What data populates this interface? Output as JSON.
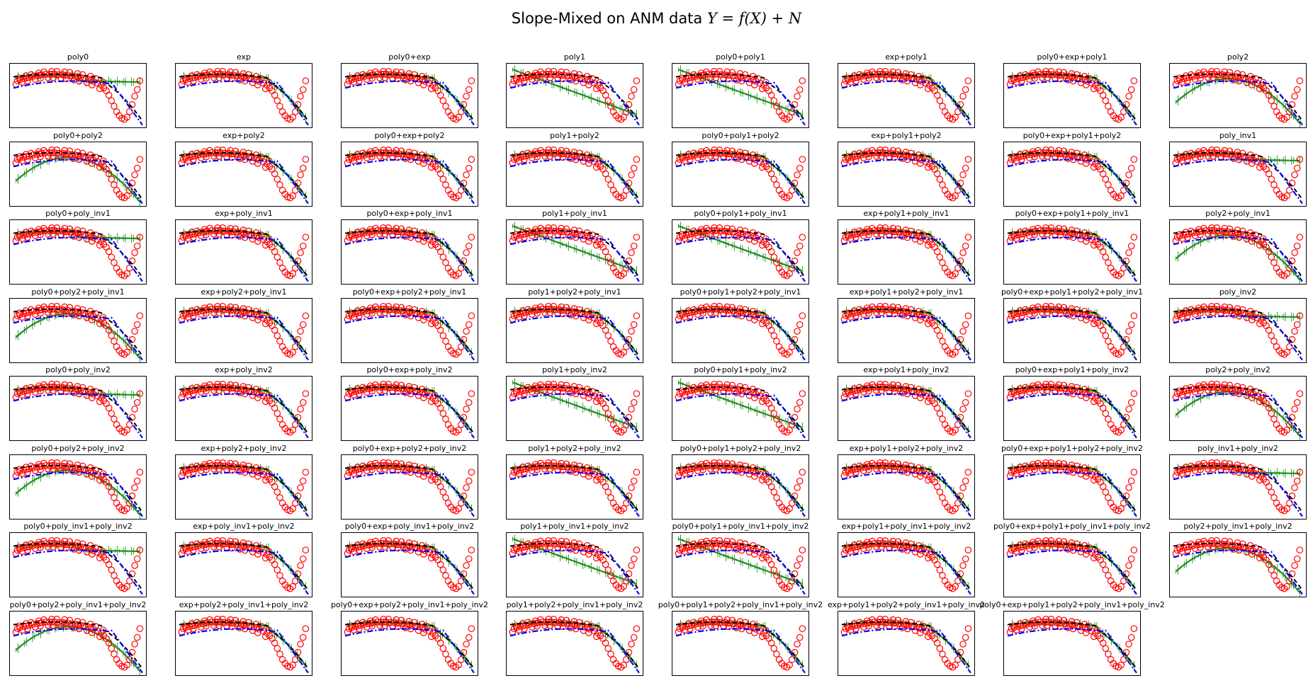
{
  "figure": {
    "title_text": "Slope-Mixed on ANM data ",
    "title_math": "Y = f(X) + N"
  },
  "chart_data": {
    "type": "scatter",
    "grid": false,
    "axes_ticks": "hidden",
    "marker_style": {
      "observations": {
        "marker": "open-circle",
        "color": "#ff0000"
      },
      "true_function": {
        "line": "dash",
        "color": "#000000"
      },
      "fit": {
        "line": "dash-dot",
        "color": "#0000ff"
      },
      "samples": {
        "marker": "plus-line",
        "color": "#008000"
      }
    },
    "observations": {
      "x": [
        0.03,
        0.05,
        0.08,
        0.1,
        0.12,
        0.15,
        0.18,
        0.2,
        0.22,
        0.25,
        0.28,
        0.3,
        0.32,
        0.35,
        0.38,
        0.4,
        0.42,
        0.45,
        0.48,
        0.5,
        0.52,
        0.55,
        0.58,
        0.6,
        0.62,
        0.65,
        0.68,
        0.7,
        0.72,
        0.74,
        0.76,
        0.78,
        0.8,
        0.82,
        0.84,
        0.86,
        0.88,
        0.9,
        0.92,
        0.94,
        0.96,
        0.98
      ],
      "y": [
        0.78,
        0.8,
        0.82,
        0.83,
        0.84,
        0.86,
        0.87,
        0.88,
        0.89,
        0.9,
        0.9,
        0.9,
        0.9,
        0.89,
        0.89,
        0.88,
        0.88,
        0.87,
        0.86,
        0.85,
        0.84,
        0.83,
        0.81,
        0.79,
        0.77,
        0.74,
        0.7,
        0.65,
        0.6,
        0.52,
        0.42,
        0.32,
        0.22,
        0.15,
        0.1,
        0.08,
        0.12,
        0.22,
        0.35,
        0.5,
        0.62,
        0.78
      ]
    },
    "panels": [
      {
        "label": "poly0",
        "fit": "flat"
      },
      {
        "label": "exp",
        "fit": "good"
      },
      {
        "label": "poly0+exp",
        "fit": "good"
      },
      {
        "label": "poly1",
        "fit": "linear"
      },
      {
        "label": "poly0+poly1",
        "fit": "linear"
      },
      {
        "label": "exp+poly1",
        "fit": "good"
      },
      {
        "label": "poly0+exp+poly1",
        "fit": "good"
      },
      {
        "label": "poly2",
        "fit": "quad"
      },
      {
        "label": "poly0+poly2",
        "fit": "quad"
      },
      {
        "label": "exp+poly2",
        "fit": "good"
      },
      {
        "label": "poly0+exp+poly2",
        "fit": "good"
      },
      {
        "label": "poly1+poly2",
        "fit": "good"
      },
      {
        "label": "poly0+poly1+poly2",
        "fit": "good"
      },
      {
        "label": "exp+poly1+poly2",
        "fit": "good"
      },
      {
        "label": "poly0+exp+poly1+poly2",
        "fit": "good"
      },
      {
        "label": "poly_inv1",
        "fit": "flat"
      },
      {
        "label": "poly0+poly_inv1",
        "fit": "flat"
      },
      {
        "label": "exp+poly_inv1",
        "fit": "good"
      },
      {
        "label": "poly0+exp+poly_inv1",
        "fit": "good"
      },
      {
        "label": "poly1+poly_inv1",
        "fit": "linear"
      },
      {
        "label": "poly0+poly1+poly_inv1",
        "fit": "linear"
      },
      {
        "label": "exp+poly1+poly_inv1",
        "fit": "good"
      },
      {
        "label": "poly0+exp+poly1+poly_inv1",
        "fit": "good"
      },
      {
        "label": "poly2+poly_inv1",
        "fit": "quad"
      },
      {
        "label": "poly0+poly2+poly_inv1",
        "fit": "quad"
      },
      {
        "label": "exp+poly2+poly_inv1",
        "fit": "good"
      },
      {
        "label": "poly0+exp+poly2+poly_inv1",
        "fit": "good"
      },
      {
        "label": "poly1+poly2+poly_inv1",
        "fit": "good"
      },
      {
        "label": "poly0+poly1+poly2+poly_inv1",
        "fit": "good"
      },
      {
        "label": "exp+poly1+poly2+poly_inv1",
        "fit": "good"
      },
      {
        "label": "poly0+exp+poly1+poly2+poly_inv1",
        "fit": "good"
      },
      {
        "label": "poly_inv2",
        "fit": "flat"
      },
      {
        "label": "poly0+poly_inv2",
        "fit": "flat"
      },
      {
        "label": "exp+poly_inv2",
        "fit": "good"
      },
      {
        "label": "poly0+exp+poly_inv2",
        "fit": "good"
      },
      {
        "label": "poly1+poly_inv2",
        "fit": "linear"
      },
      {
        "label": "poly0+poly1+poly_inv2",
        "fit": "linear"
      },
      {
        "label": "exp+poly1+poly_inv2",
        "fit": "good"
      },
      {
        "label": "poly0+exp+poly1+poly_inv2",
        "fit": "good"
      },
      {
        "label": "poly2+poly_inv2",
        "fit": "quad"
      },
      {
        "label": "poly0+poly2+poly_inv2",
        "fit": "quad"
      },
      {
        "label": "exp+poly2+poly_inv2",
        "fit": "good"
      },
      {
        "label": "poly0+exp+poly2+poly_inv2",
        "fit": "good"
      },
      {
        "label": "poly1+poly2+poly_inv2",
        "fit": "good"
      },
      {
        "label": "poly0+poly1+poly2+poly_inv2",
        "fit": "good"
      },
      {
        "label": "exp+poly1+poly2+poly_inv2",
        "fit": "good"
      },
      {
        "label": "poly0+exp+poly1+poly2+poly_inv2",
        "fit": "good"
      },
      {
        "label": "poly_inv1+poly_inv2",
        "fit": "flat"
      },
      {
        "label": "poly0+poly_inv1+poly_inv2",
        "fit": "flat"
      },
      {
        "label": "exp+poly_inv1+poly_inv2",
        "fit": "good"
      },
      {
        "label": "poly0+exp+poly_inv1+poly_inv2",
        "fit": "good"
      },
      {
        "label": "poly1+poly_inv1+poly_inv2",
        "fit": "linear"
      },
      {
        "label": "poly0+poly1+poly_inv1+poly_inv2",
        "fit": "linear"
      },
      {
        "label": "exp+poly1+poly_inv1+poly_inv2",
        "fit": "good"
      },
      {
        "label": "poly0+exp+poly1+poly_inv1+poly_inv2",
        "fit": "good"
      },
      {
        "label": "poly2+poly_inv1+poly_inv2",
        "fit": "quad"
      },
      {
        "label": "poly0+poly2+poly_inv1+poly_inv2",
        "fit": "quad"
      },
      {
        "label": "exp+poly2+poly_inv1+poly_inv2",
        "fit": "good"
      },
      {
        "label": "poly0+exp+poly2+poly_inv1+poly_inv2",
        "fit": "good"
      },
      {
        "label": "poly1+poly2+poly_inv1+poly_inv2",
        "fit": "good"
      },
      {
        "label": "poly0+poly1+poly2+poly_inv1+poly_inv2",
        "fit": "good"
      },
      {
        "label": "exp+poly1+poly2+poly_inv1+poly_inv2",
        "fit": "good"
      },
      {
        "label": "poly0+exp+poly1+poly2+poly_inv1+poly_inv2",
        "fit": "good"
      }
    ]
  }
}
